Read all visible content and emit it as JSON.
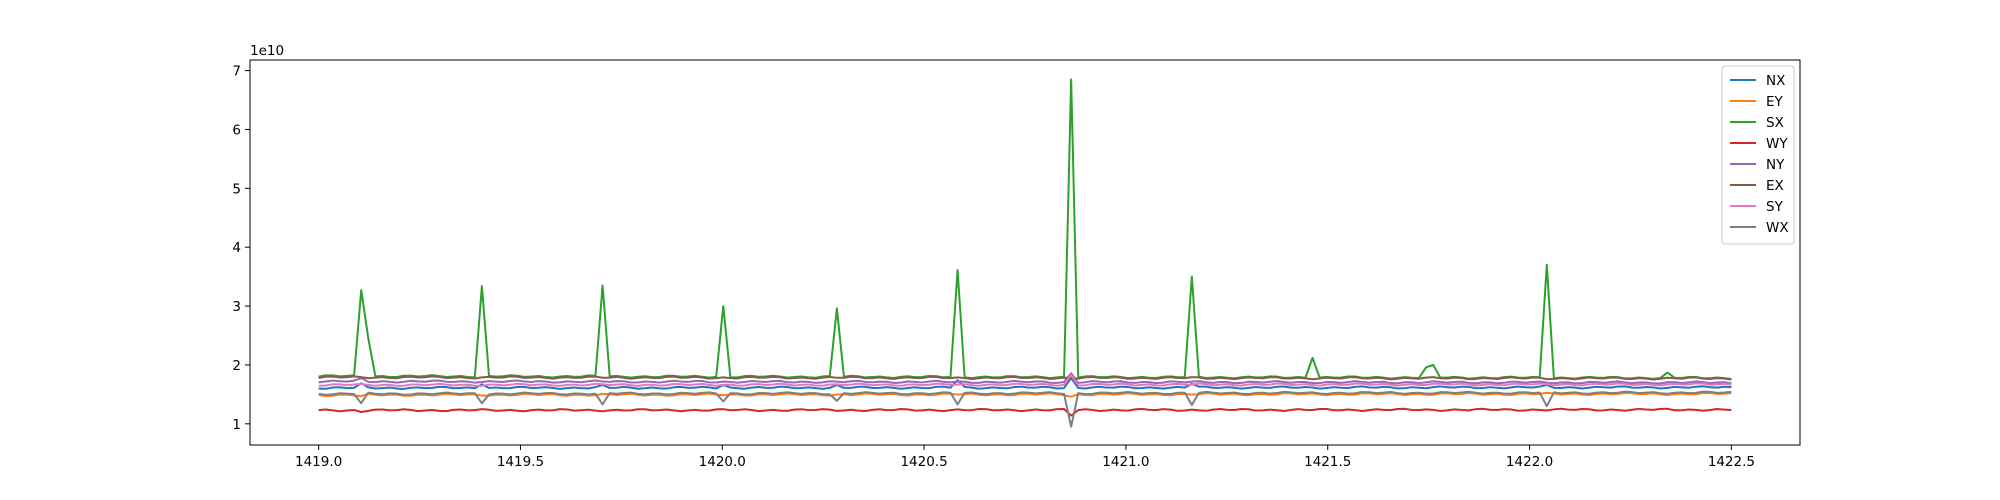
{
  "chart_data": {
    "type": "line",
    "title": "",
    "xlabel": "",
    "ylabel": "",
    "y_offset_label": "1e10",
    "xlim": [
      1418.83,
      1422.67
    ],
    "ylim": [
      0.64,
      7.18
    ],
    "x_ticks": [
      1419.0,
      1419.5,
      1420.0,
      1420.5,
      1421.0,
      1421.5,
      1422.0,
      1422.5
    ],
    "x_tick_labels": [
      "1419.0",
      "1419.5",
      "1420.0",
      "1420.5",
      "1421.0",
      "1421.5",
      "1422.0",
      "1422.5"
    ],
    "y_ticks": [
      1,
      2,
      3,
      4,
      5,
      6,
      7
    ],
    "y_tick_labels": [
      "1",
      "2",
      "3",
      "4",
      "5",
      "6",
      "7"
    ],
    "grid": false,
    "legend_position": "top-right",
    "x_range": [
      1419.0,
      1422.5
    ],
    "x_count": 200,
    "series": [
      {
        "name": "NX",
        "color": "#1f77b4",
        "base": 1.61,
        "end": 1.62,
        "spikes": [
          [
            1419.11,
            1.69
          ],
          [
            1419.41,
            1.67
          ],
          [
            1419.7,
            1.66
          ],
          [
            1420.0,
            1.66
          ],
          [
            1420.29,
            1.66
          ],
          [
            1420.59,
            1.74
          ],
          [
            1420.87,
            1.78
          ],
          [
            1421.17,
            1.68
          ],
          [
            1422.05,
            1.66
          ]
        ]
      },
      {
        "name": "EY",
        "color": "#ff7f0e",
        "base": 1.49,
        "end": 1.51,
        "spikes": [
          [
            1419.11,
            1.47
          ],
          [
            1420.87,
            1.46
          ]
        ]
      },
      {
        "name": "SX",
        "color": "#2ca02c",
        "base": 1.81,
        "end": 1.78,
        "spikes": [
          [
            1419.11,
            3.27
          ],
          [
            1419.12,
            2.45
          ],
          [
            1419.41,
            3.34
          ],
          [
            1419.7,
            3.35
          ],
          [
            1420.0,
            3.0
          ],
          [
            1420.29,
            2.96
          ],
          [
            1420.59,
            3.61
          ],
          [
            1420.87,
            6.85
          ],
          [
            1421.17,
            3.5
          ],
          [
            1421.46,
            2.12
          ],
          [
            1421.74,
            1.96
          ],
          [
            1421.76,
            2.0
          ],
          [
            1422.05,
            3.7
          ],
          [
            1422.34,
            1.87
          ]
        ]
      },
      {
        "name": "WY",
        "color": "#d62728",
        "base": 1.23,
        "end": 1.24,
        "spikes": [
          [
            1419.11,
            1.2
          ],
          [
            1420.87,
            1.14
          ]
        ]
      },
      {
        "name": "NY",
        "color": "#9467bd",
        "base": 1.72,
        "end": 1.7,
        "spikes": [
          [
            1419.11,
            1.78
          ],
          [
            1420.87,
            1.86
          ]
        ]
      },
      {
        "name": "EX",
        "color": "#8c564b",
        "base": 1.79,
        "end": 1.77,
        "spikes": []
      },
      {
        "name": "SY",
        "color": "#e377c2",
        "base": 1.66,
        "end": 1.67,
        "spikes": [
          [
            1420.87,
            1.83
          ]
        ]
      },
      {
        "name": "WX",
        "color": "#7f7f7f",
        "base": 1.51,
        "end": 1.53,
        "spikes": [
          [
            1419.11,
            1.35
          ],
          [
            1419.41,
            1.35
          ],
          [
            1419.7,
            1.33
          ],
          [
            1420.0,
            1.38
          ],
          [
            1420.29,
            1.39
          ],
          [
            1420.59,
            1.33
          ],
          [
            1420.87,
            0.95
          ],
          [
            1421.17,
            1.32
          ],
          [
            1422.05,
            1.3
          ]
        ]
      }
    ]
  }
}
